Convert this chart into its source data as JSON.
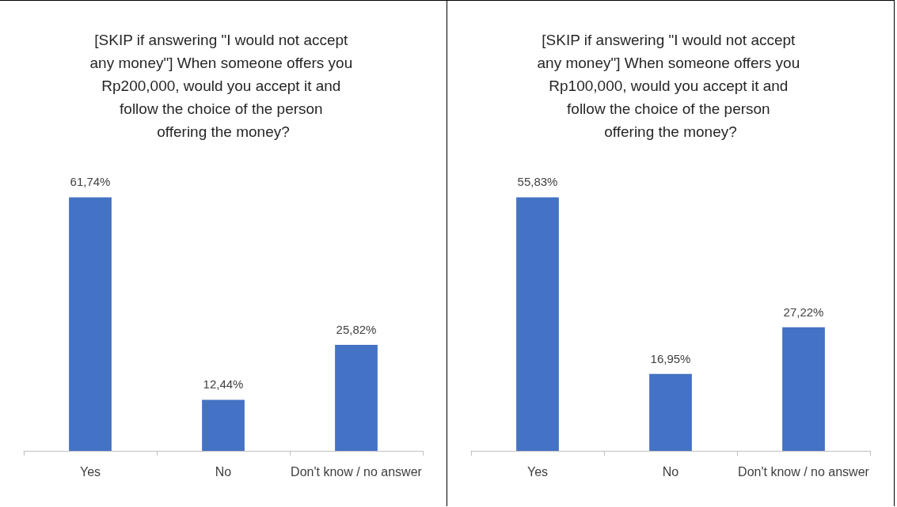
{
  "chart_data": [
    {
      "type": "bar",
      "title": "[SKIP if answering \"I would not accept any money\"] When someone offers you Rp200,000, would you accept it and follow the choice of the person offering the money?",
      "categories": [
        "Yes",
        "No",
        "Don't know / no answer"
      ],
      "values": [
        61.74,
        12.44,
        25.82
      ],
      "value_labels": [
        "61,74%",
        "12,44%",
        "25,82%"
      ],
      "color": "#4472c4",
      "tick_labels": "x"
    },
    {
      "type": "bar",
      "title": "[SKIP if answering \"I would not accept any money\"] When someone offers you Rp100,000, would you accept it and follow the choice of the person offering the money?",
      "categories": [
        "Yes",
        "No",
        "Don't know / no answer"
      ],
      "values": [
        55.83,
        16.95,
        27.22
      ],
      "value_labels": [
        "55,83%",
        "16,95%",
        "27,22%"
      ],
      "color": "#4472c4",
      "tick_labels": "x"
    }
  ]
}
